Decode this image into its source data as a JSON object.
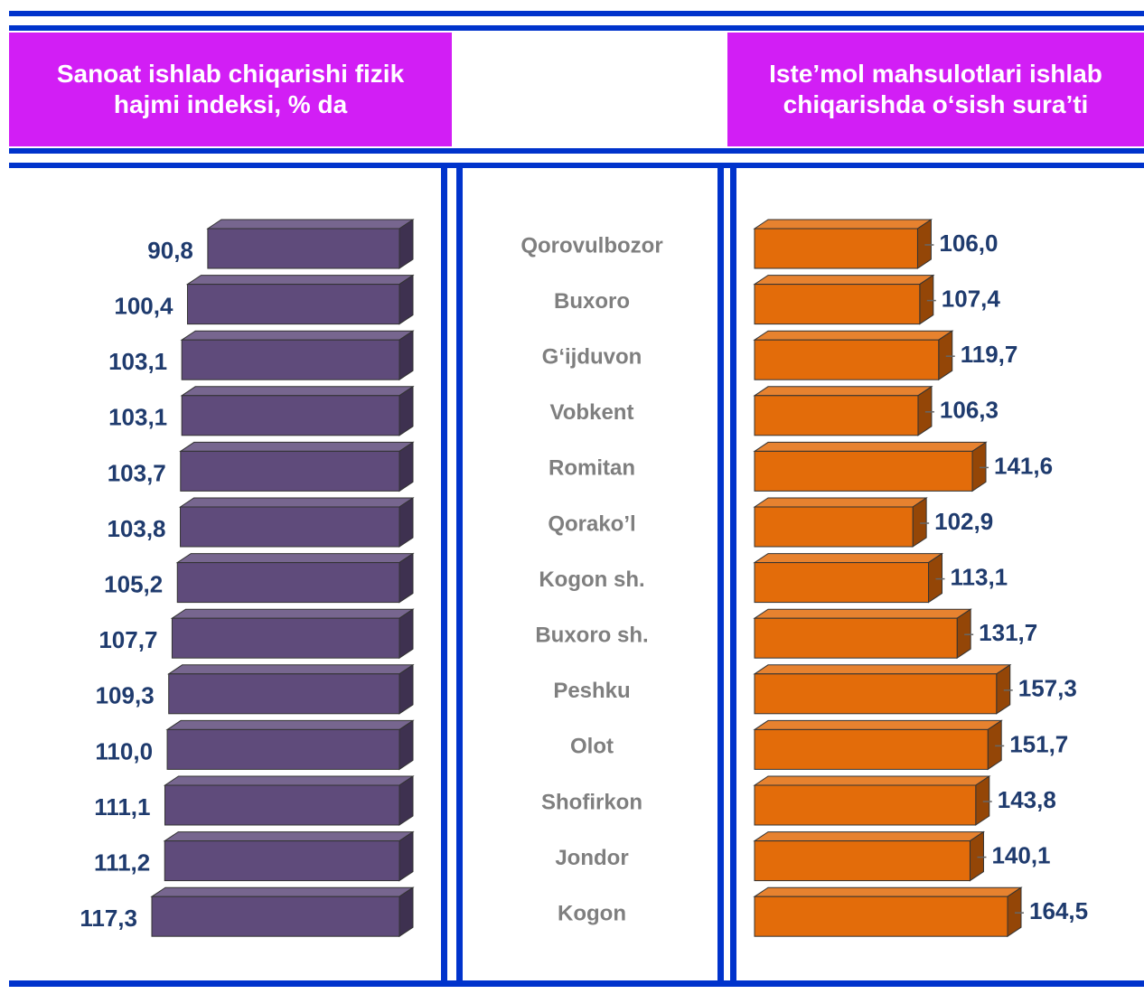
{
  "chart_data": {
    "type": "bar",
    "categories": [
      "Qorovulbozor",
      "Buxoro",
      "G‘ijduvon",
      "Vobkent",
      "Romitan",
      "Qorako’l",
      "Kogon sh.",
      "Buxoro sh.",
      "Peshku",
      "Olot",
      "Shofirkon",
      "Jondor",
      "Kogon"
    ],
    "series": [
      {
        "name": "Sanoat ishlab chiqarishi fizik hajmi indeksi, % da",
        "color": "#5f4b7b",
        "values": [
          90.8,
          100.4,
          103.1,
          103.1,
          103.7,
          103.8,
          105.2,
          107.7,
          109.3,
          110.0,
          111.1,
          111.2,
          117.3
        ],
        "value_labels": [
          "90,8",
          "100,4",
          "103,1",
          "103,1",
          "103,7",
          "103,8",
          "105,2",
          "107,7",
          "109,3",
          "110,0",
          "111,1",
          "111,2",
          "117,3"
        ]
      },
      {
        "name": "Iste’mol mahsulotlari ishlab chiqarishda o‘sish sura’ti",
        "color": "#e36c0a",
        "values": [
          106.0,
          107.4,
          119.7,
          106.3,
          141.6,
          102.9,
          113.1,
          131.7,
          157.3,
          151.7,
          143.8,
          140.1,
          164.5
        ],
        "value_labels": [
          "106,0",
          "107,4",
          "119,7",
          "106,3",
          "141,6",
          "102,9",
          "113,1",
          "131,7",
          "157,3",
          "151,7",
          "143,8",
          "140,1",
          "164,5"
        ]
      }
    ]
  }
}
